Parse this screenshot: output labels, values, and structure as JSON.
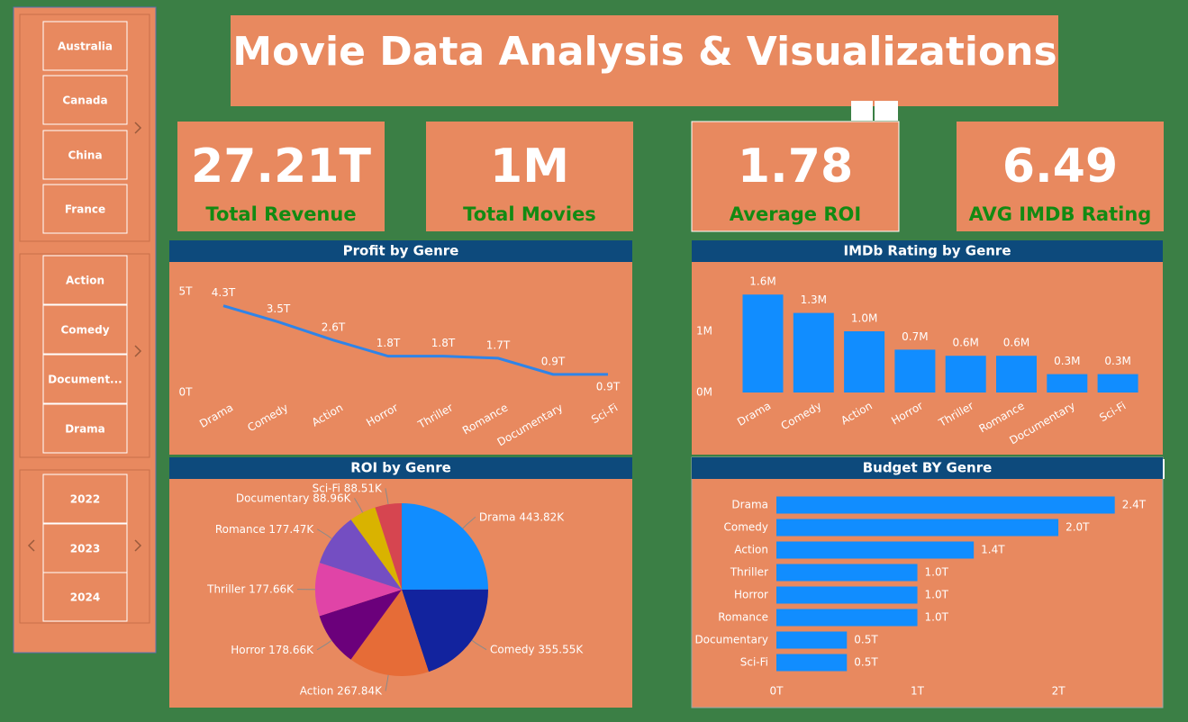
{
  "title": "Movie Data Analysis & Visualizations",
  "slicers": {
    "countries": [
      "Australia",
      "Canada",
      "China",
      "France"
    ],
    "genres": [
      "Action",
      "Comedy",
      "Document...",
      "Drama"
    ],
    "years": [
      "2022",
      "2023",
      "2024"
    ]
  },
  "kpis": [
    {
      "value": "27.21T",
      "label": "Total Revenue"
    },
    {
      "value": "1M",
      "label": "Total Movies"
    },
    {
      "value": "1.78",
      "label": "Average ROI"
    },
    {
      "value": "6.49",
      "label": "AVG IMDB Rating"
    }
  ],
  "chart_data": [
    {
      "type": "line",
      "title": "Profit by Genre",
      "color": "#2f84e8",
      "categories": [
        "Drama",
        "Comedy",
        "Action",
        "Horror",
        "Thriller",
        "Romance",
        "Documentary",
        "Sci-Fi"
      ],
      "values": [
        4.3,
        3.5,
        2.6,
        1.8,
        1.8,
        1.7,
        0.9,
        0.9
      ],
      "value_labels": [
        "4.3T",
        "3.5T",
        "2.6T",
        "1.8T",
        "1.8T",
        "1.7T",
        "0.9T",
        "0.9T"
      ],
      "ylim": [
        0,
        5
      ],
      "yticks": [
        {
          "value": 0,
          "label": "0T"
        },
        {
          "value": 5,
          "label": "5T"
        }
      ]
    },
    {
      "type": "bar",
      "title": "IMDb Rating by Genre",
      "color": "#118dff",
      "categories": [
        "Drama",
        "Comedy",
        "Action",
        "Horror",
        "Thriller",
        "Romance",
        "Documentary",
        "Sci-Fi"
      ],
      "values": [
        1.6,
        1.3,
        1.0,
        0.7,
        0.6,
        0.6,
        0.3,
        0.3
      ],
      "value_labels": [
        "1.6M",
        "1.3M",
        "1.0M",
        "0.7M",
        "0.6M",
        "0.6M",
        "0.3M",
        "0.3M"
      ],
      "ylim": [
        0,
        2
      ],
      "yticks": [
        {
          "value": 0,
          "label": "0M"
        },
        {
          "value": 1,
          "label": "1M"
        }
      ]
    },
    {
      "type": "pie",
      "title": "ROI by Genre",
      "categories": [
        "Drama",
        "Comedy",
        "Action",
        "Horror",
        "Thriller",
        "Romance",
        "Documentary",
        "Sci-Fi"
      ],
      "values": [
        443.82,
        355.55,
        267.84,
        178.66,
        177.66,
        177.47,
        88.96,
        88.51
      ],
      "value_labels": [
        "443.82K",
        "355.55K",
        "267.84K",
        "178.66K",
        "177.66K",
        "177.47K",
        "88.96K",
        "88.51K"
      ],
      "colors": [
        "#118dff",
        "#12239e",
        "#e66c37",
        "#6b007b",
        "#e044a7",
        "#744ec2",
        "#d9b300",
        "#d64550"
      ]
    },
    {
      "type": "hbar",
      "title": "Budget BY Genre",
      "color": "#118dff",
      "categories": [
        "Drama",
        "Comedy",
        "Action",
        "Thriller",
        "Horror",
        "Romance",
        "Documentary",
        "Sci-Fi"
      ],
      "values": [
        2.4,
        2.0,
        1.4,
        1.0,
        1.0,
        1.0,
        0.5,
        0.5
      ],
      "value_labels": [
        "2.4T",
        "2.0T",
        "1.4T",
        "1.0T",
        "1.0T",
        "1.0T",
        "0.5T",
        "0.5T"
      ],
      "xlim": [
        0,
        2.6
      ],
      "xticks": [
        {
          "value": 0,
          "label": "0T"
        },
        {
          "value": 1,
          "label": "1T"
        },
        {
          "value": 2,
          "label": "2T"
        }
      ]
    }
  ]
}
